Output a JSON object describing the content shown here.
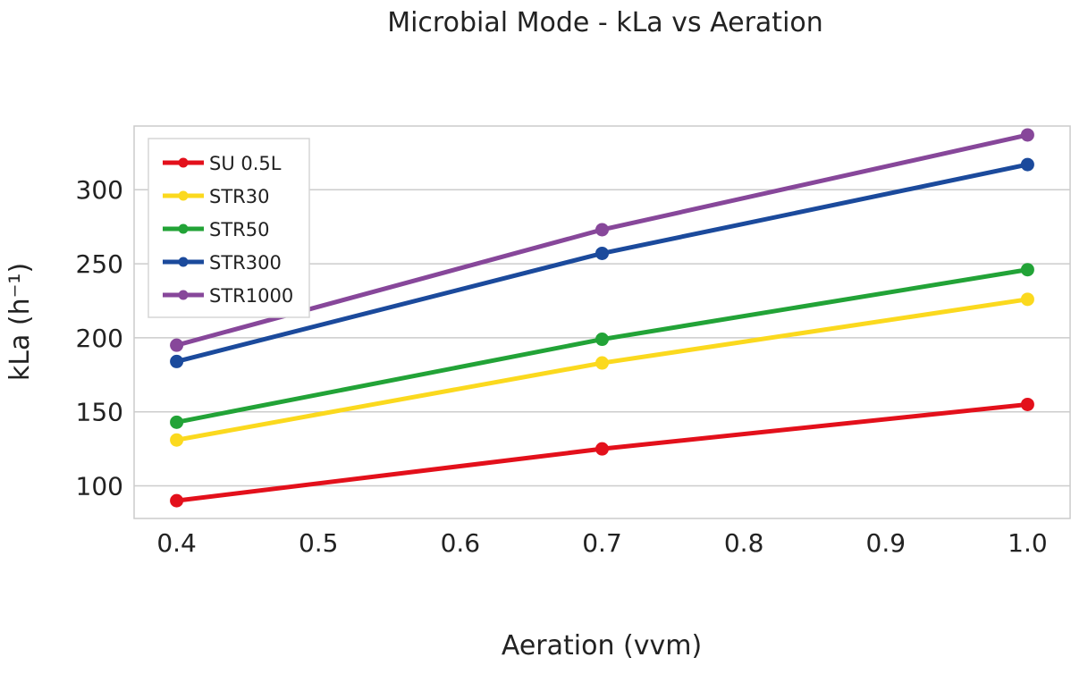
{
  "chart_data": {
    "type": "line",
    "title": "Microbial Mode - kLa vs Aeration",
    "xlabel": "Aeration (vvm)",
    "ylabel": "kLa (h⁻¹)",
    "x": [
      0.4,
      0.7,
      1.0
    ],
    "xlim": [
      0.37,
      1.03
    ],
    "ylim": [
      78,
      343
    ],
    "xticks": [
      "0.4",
      "0.5",
      "0.6",
      "0.7",
      "0.8",
      "0.9",
      "1.0"
    ],
    "yticks": [
      "100",
      "150",
      "200",
      "250",
      "300"
    ],
    "grid": "horizontal",
    "legend_position": "top-left",
    "series": [
      {
        "name": "SU 0.5L",
        "color": "#e3101b",
        "values": [
          90,
          125,
          155
        ]
      },
      {
        "name": "STR30",
        "color": "#fbd91e",
        "values": [
          131,
          183,
          226
        ]
      },
      {
        "name": "STR50",
        "color": "#22a337",
        "values": [
          143,
          199,
          246
        ]
      },
      {
        "name": "STR300",
        "color": "#1b4a9c",
        "values": [
          184,
          257,
          317
        ]
      },
      {
        "name": "STR1000",
        "color": "#87479a",
        "values": [
          195,
          273,
          337
        ]
      }
    ]
  }
}
